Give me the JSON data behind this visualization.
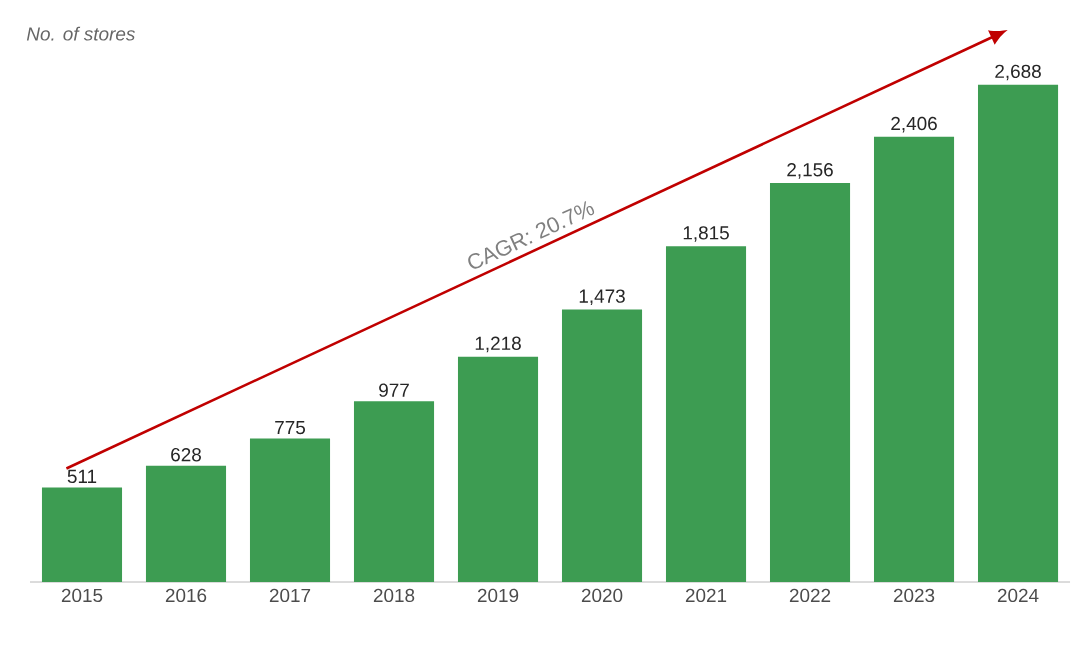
{
  "chart_data": {
    "type": "bar",
    "ylabel": "No. of stores",
    "categories": [
      "2015",
      "2016",
      "2017",
      "2018",
      "2019",
      "2020",
      "2021",
      "2022",
      "2023",
      "2024"
    ],
    "values": [
      511,
      628,
      775,
      977,
      1218,
      1473,
      1815,
      2156,
      2406,
      2688
    ],
    "value_labels": [
      "511",
      "628",
      "775",
      "977",
      "1,218",
      "1,473",
      "1,815",
      "2,156",
      "2,406",
      "2,688"
    ],
    "color": "#3d9c52",
    "annotations": [
      "CAGR: 20.7%"
    ]
  }
}
